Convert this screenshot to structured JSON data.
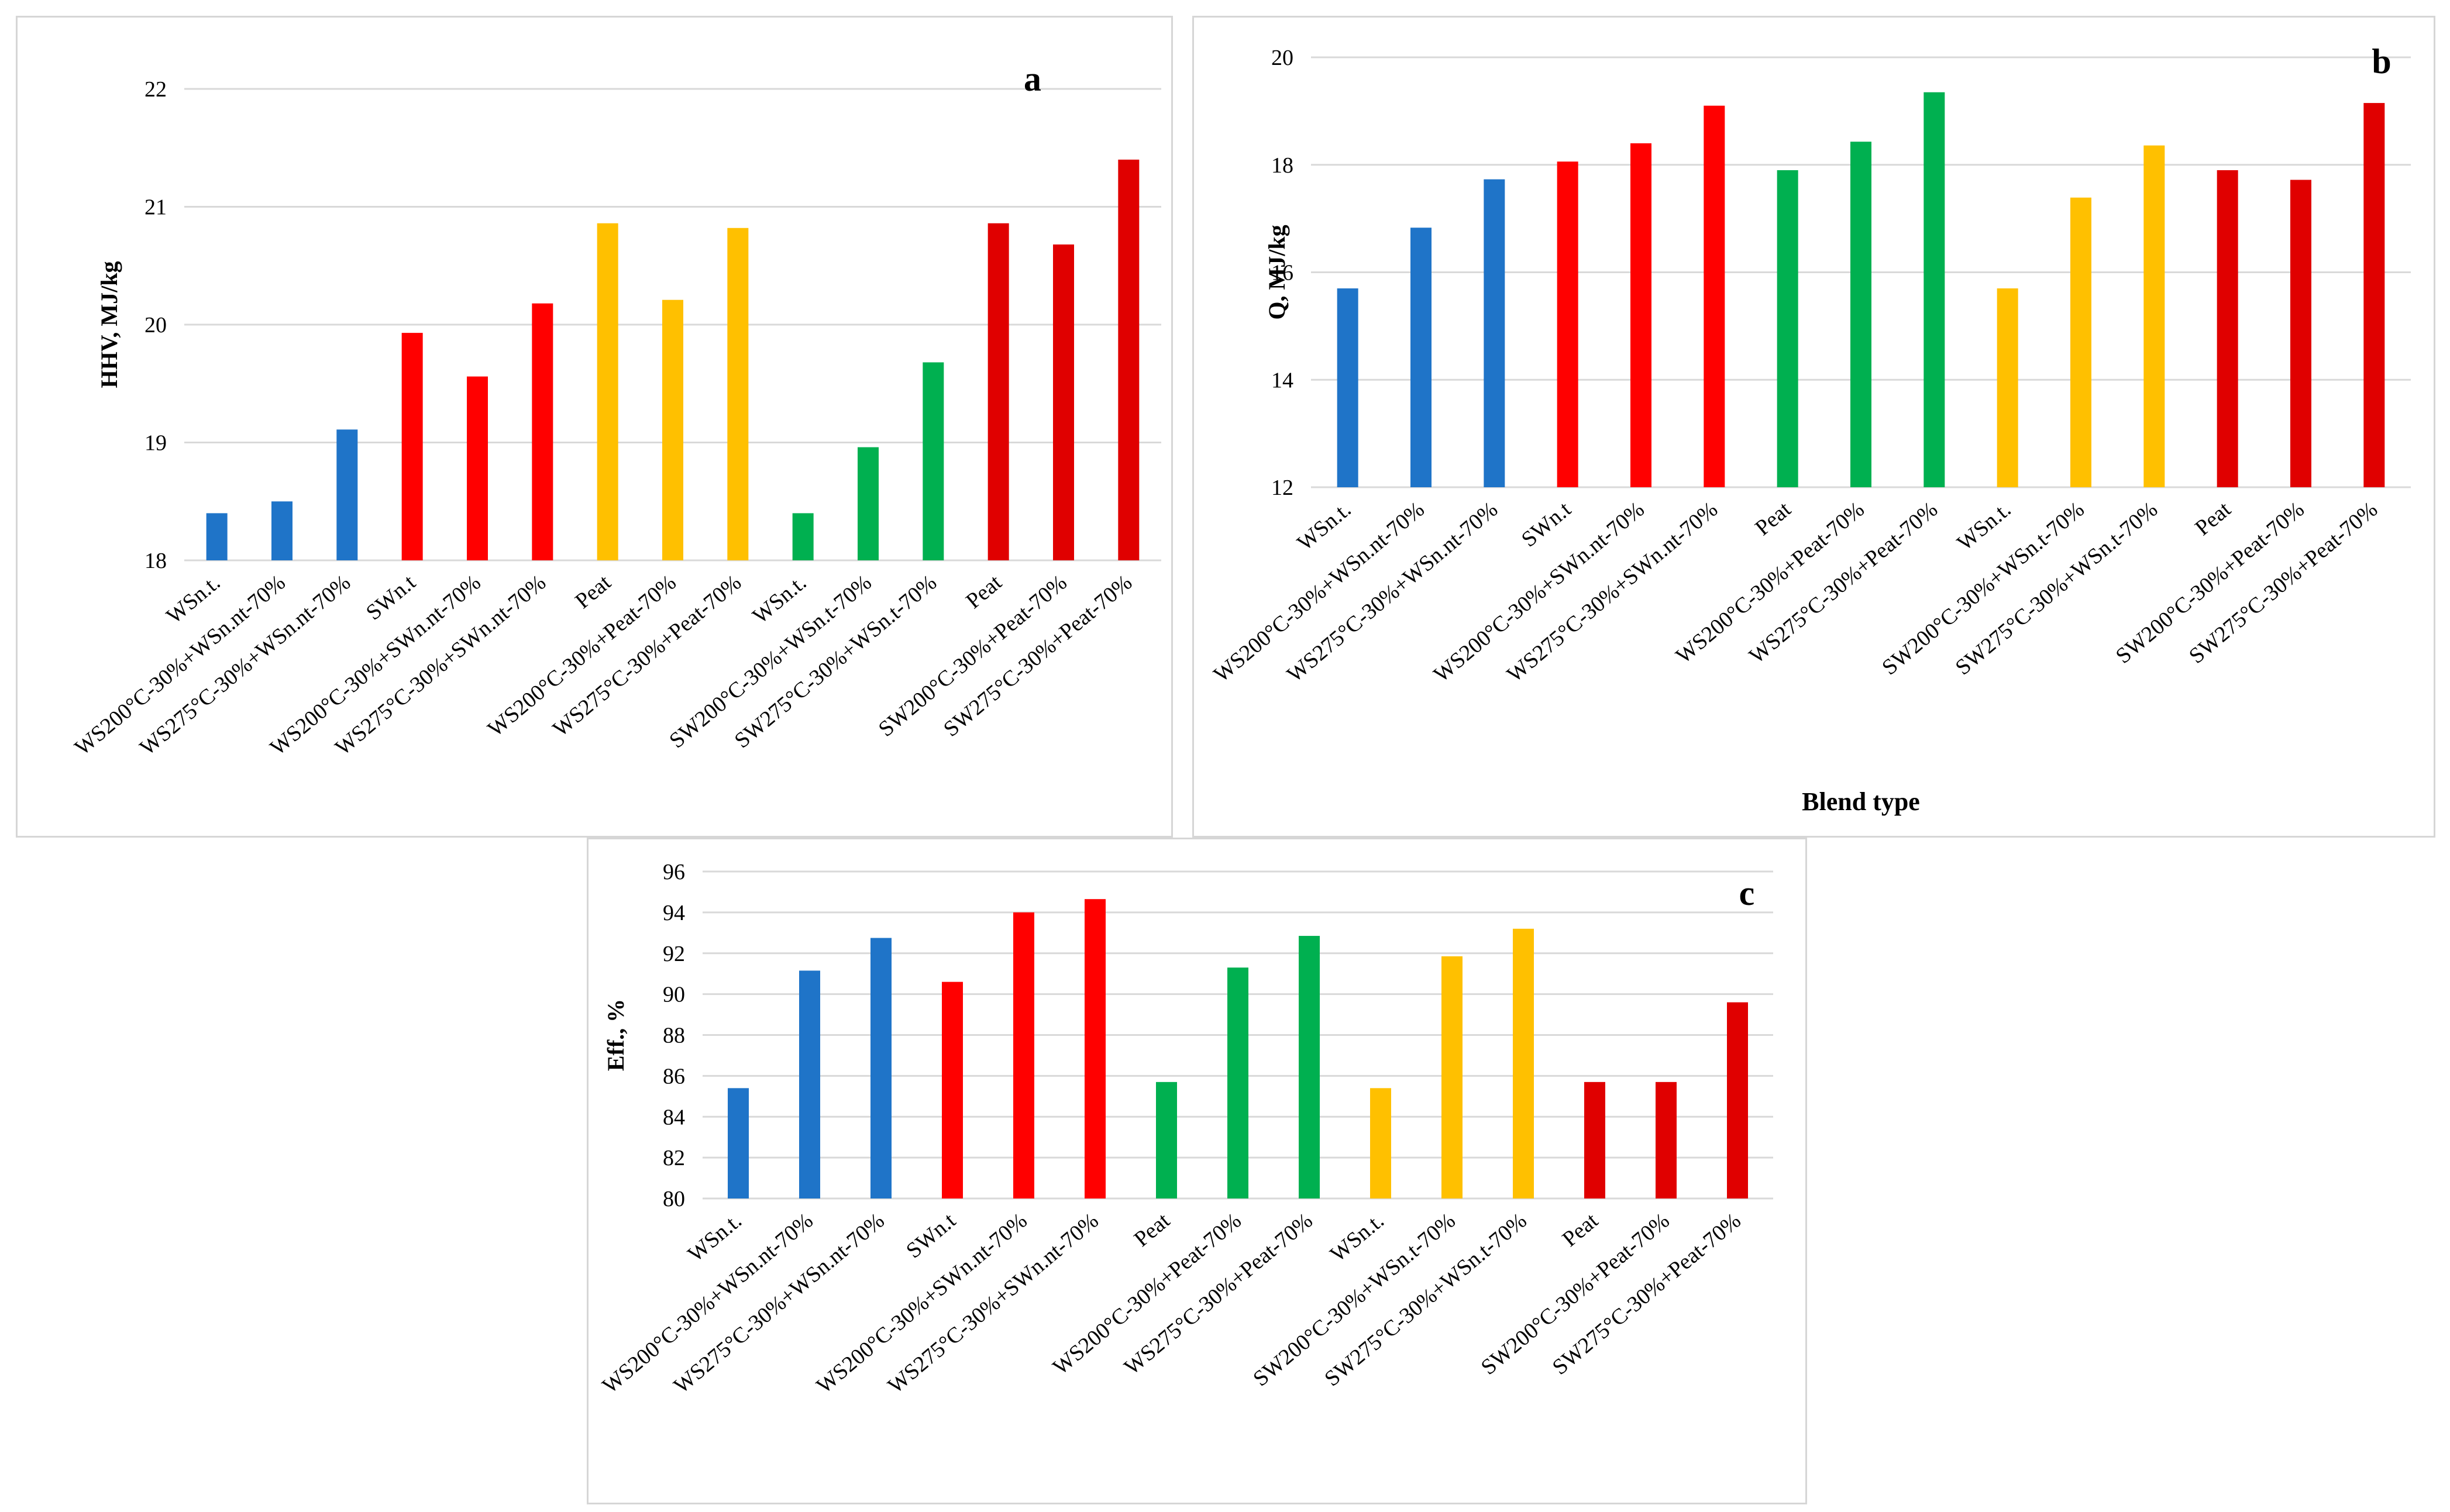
{
  "charts": [
    {
      "id": "a",
      "panel_label": "a",
      "ylabel": "HHV, MJ/kg",
      "xlabel": "",
      "ylim": [
        18,
        22
      ],
      "yticks": [
        "18",
        "19",
        "20",
        "21",
        "22"
      ],
      "categories": [
        "WSn.t.",
        "WS200°C-30%+WSn.nt-70%",
        "WS275°C-30%+WSn.nt-70%",
        "SWn.t",
        "WS200°C-30%+SWn.nt-70%",
        "WS275°C-30%+SWn.nt-70%",
        "Peat",
        "WS200°C-30%+Peat-70%",
        "WS275°C-30%+Peat-70%",
        "WSn.t.",
        "SW200°C-30%+WSn.t-70%",
        "SW275°C-30%+WSn.t-70%",
        "Peat",
        "SW200°C-30%+Peat-70%",
        "SW275°C-30%+Peat-70%"
      ],
      "values": [
        18.4,
        18.5,
        19.11,
        19.93,
        19.56,
        20.18,
        20.86,
        20.21,
        20.82,
        18.4,
        18.96,
        19.68,
        20.86,
        20.68,
        21.4
      ],
      "colors": [
        "#1f74c8",
        "#1f74c8",
        "#1f74c8",
        "#ff0000",
        "#ff0000",
        "#ff0000",
        "#ffc000",
        "#ffc000",
        "#ffc000",
        "#00b050",
        "#00b050",
        "#00b050",
        "#e00000",
        "#e00000",
        "#e00000"
      ]
    },
    {
      "id": "b",
      "panel_label": "b",
      "ylabel": "Q, MJ/kg",
      "xlabel": "Blend type",
      "ylim": [
        12,
        20
      ],
      "yticks": [
        "12",
        "14",
        "16",
        "18",
        "20"
      ],
      "categories": [
        "WSn.t.",
        "WS200°C-30%+WSn.nt-70%",
        "WS275°C-30%+WSn.nt-70%",
        "SWn.t",
        "WS200°C-30%+SWn.nt-70%",
        "WS275°C-30%+SWn.nt-70%",
        "Peat",
        "WS200°C-30%+Peat-70%",
        "WS275°C-30%+Peat-70%",
        "WSn.t.",
        "SW200°C-30%+WSn.t-70%",
        "SW275°C-30%+WSn.t-70%",
        "Peat",
        "SW200°C-30%+Peat-70%",
        "SW275°C-30%+Peat-70%"
      ],
      "values": [
        15.7,
        16.83,
        17.73,
        18.06,
        18.4,
        19.1,
        17.9,
        18.43,
        19.35,
        15.7,
        17.39,
        18.36,
        17.9,
        17.72,
        19.15
      ],
      "colors": [
        "#1f74c8",
        "#1f74c8",
        "#1f74c8",
        "#ff0000",
        "#ff0000",
        "#ff0000",
        "#00b050",
        "#00b050",
        "#00b050",
        "#ffc000",
        "#ffc000",
        "#ffc000",
        "#e00000",
        "#e00000",
        "#e00000"
      ]
    },
    {
      "id": "c",
      "panel_label": "c",
      "ylabel": "Eff., %",
      "xlabel": "",
      "ylim": [
        80,
        96
      ],
      "yticks": [
        "80",
        "82",
        "84",
        "86",
        "88",
        "90",
        "92",
        "94",
        "96"
      ],
      "categories": [
        "WSn.t.",
        "WS200°C-30%+WSn.nt-70%",
        "WS275°C-30%+WSn.nt-70%",
        "SWn.t",
        "WS200°C-30%+SWn.nt-70%",
        "WS275°C-30%+SWn.nt-70%",
        "Peat",
        "WS200°C-30%+Peat-70%",
        "WS275°C-30%+Peat-70%",
        "WSn.t.",
        "SW200°C-30%+WSn.t-70%",
        "SW275°C-30%+WSn.t-70%",
        "Peat",
        "SW200°C-30%+Peat-70%",
        "SW275°C-30%+Peat-70%"
      ],
      "values": [
        85.4,
        91.15,
        92.75,
        90.6,
        94.0,
        94.65,
        85.7,
        91.3,
        92.85,
        85.4,
        91.85,
        93.2,
        85.7,
        85.7,
        89.6
      ],
      "colors": [
        "#1f74c8",
        "#1f74c8",
        "#1f74c8",
        "#ff0000",
        "#ff0000",
        "#ff0000",
        "#00b050",
        "#00b050",
        "#00b050",
        "#ffc000",
        "#ffc000",
        "#ffc000",
        "#e00000",
        "#e00000",
        "#e00000"
      ]
    }
  ],
  "chart_data": [
    {
      "type": "bar",
      "title": "a",
      "ylabel": "HHV, MJ/kg",
      "xlabel": "",
      "ylim": [
        18,
        22
      ],
      "categories": [
        "WSn.t.",
        "WS200°C-30%+WSn.nt-70%",
        "WS275°C-30%+WSn.nt-70%",
        "SWn.t",
        "WS200°C-30%+SWn.nt-70%",
        "WS275°C-30%+SWn.nt-70%",
        "Peat",
        "WS200°C-30%+Peat-70%",
        "WS275°C-30%+Peat-70%",
        "WSn.t.",
        "SW200°C-30%+WSn.t-70%",
        "SW275°C-30%+WSn.t-70%",
        "Peat",
        "SW200°C-30%+Peat-70%",
        "SW275°C-30%+Peat-70%"
      ],
      "values": [
        18.4,
        18.5,
        19.11,
        19.93,
        19.56,
        20.18,
        20.86,
        20.21,
        20.82,
        18.4,
        18.96,
        19.68,
        20.86,
        20.68,
        21.4
      ],
      "grid": true
    },
    {
      "type": "bar",
      "title": "b",
      "ylabel": "Q, MJ/kg",
      "xlabel": "Blend type",
      "ylim": [
        12,
        20
      ],
      "categories": [
        "WSn.t.",
        "WS200°C-30%+WSn.nt-70%",
        "WS275°C-30%+WSn.nt-70%",
        "SWn.t",
        "WS200°C-30%+SWn.nt-70%",
        "WS275°C-30%+SWn.nt-70%",
        "Peat",
        "WS200°C-30%+Peat-70%",
        "WS275°C-30%+Peat-70%",
        "WSn.t.",
        "SW200°C-30%+WSn.t-70%",
        "SW275°C-30%+WSn.t-70%",
        "Peat",
        "SW200°C-30%+Peat-70%",
        "SW275°C-30%+Peat-70%"
      ],
      "values": [
        15.7,
        16.83,
        17.73,
        18.06,
        18.4,
        19.1,
        17.9,
        18.43,
        19.35,
        15.7,
        17.39,
        18.36,
        17.9,
        17.72,
        19.15
      ],
      "grid": true
    },
    {
      "type": "bar",
      "title": "c",
      "ylabel": "Eff., %",
      "xlabel": "",
      "ylim": [
        80,
        96
      ],
      "categories": [
        "WSn.t.",
        "WS200°C-30%+WSn.nt-70%",
        "WS275°C-30%+WSn.nt-70%",
        "SWn.t",
        "WS200°C-30%+SWn.nt-70%",
        "WS275°C-30%+SWn.nt-70%",
        "Peat",
        "WS200°C-30%+Peat-70%",
        "WS275°C-30%+Peat-70%",
        "WSn.t.",
        "SW200°C-30%+WSn.t-70%",
        "SW275°C-30%+WSn.t-70%",
        "Peat",
        "SW200°C-30%+Peat-70%",
        "SW275°C-30%+Peat-70%"
      ],
      "values": [
        85.4,
        91.15,
        92.75,
        90.6,
        94.0,
        94.65,
        85.7,
        91.3,
        92.85,
        85.4,
        91.85,
        93.2,
        85.7,
        85.7,
        89.6
      ],
      "grid": true
    }
  ]
}
